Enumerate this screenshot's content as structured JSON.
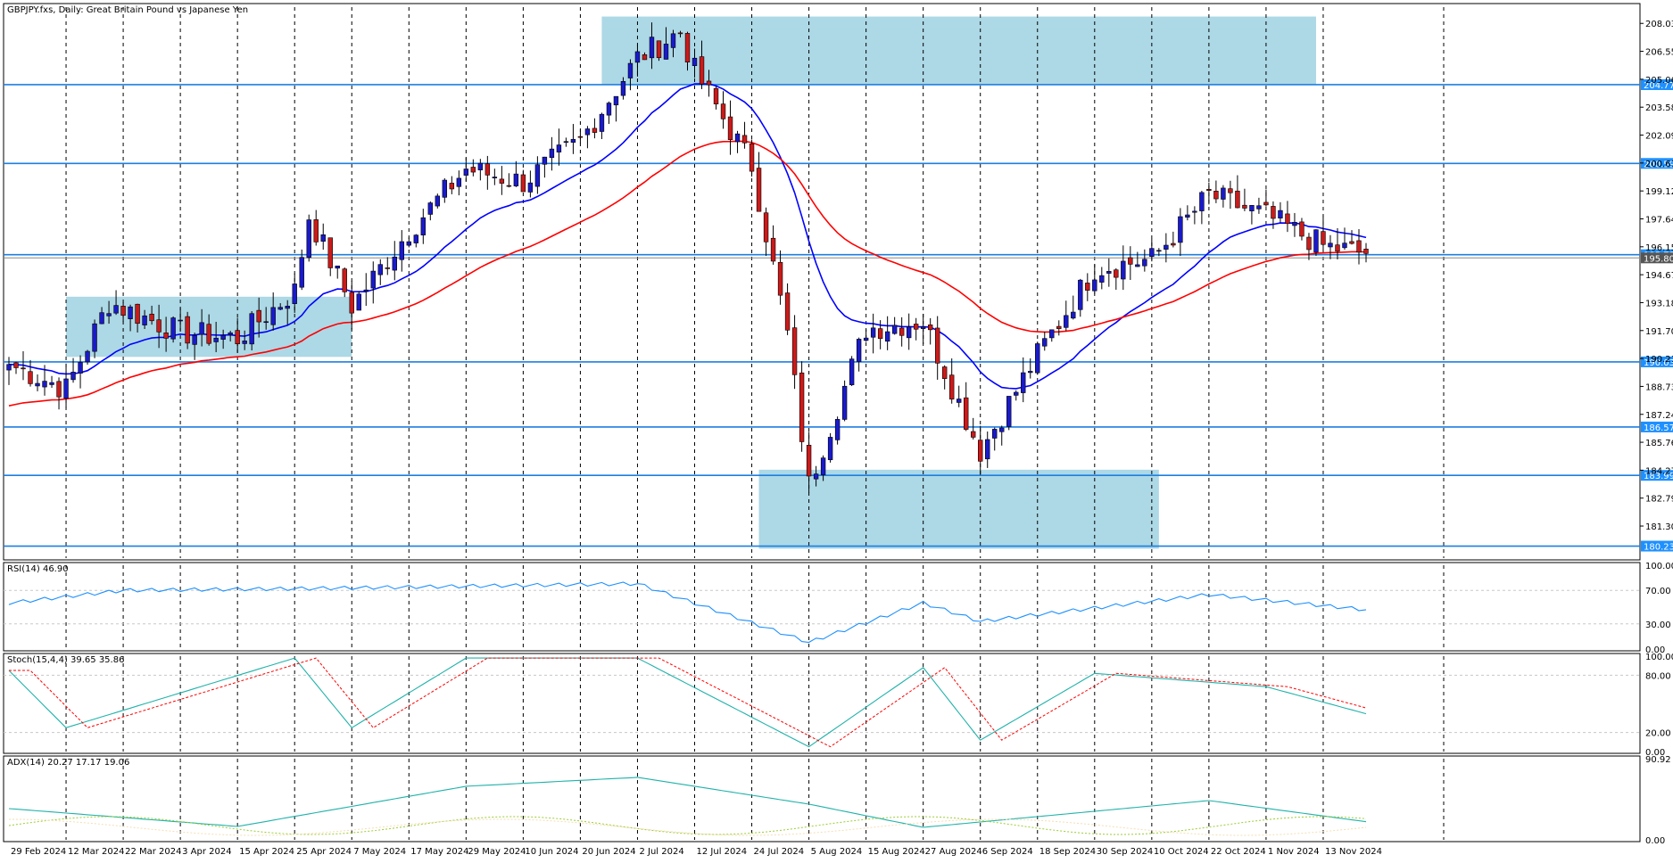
{
  "chart_title": "GBPJPY.fxs, Daily:  Great Britain Pound vs Japanese Yen",
  "colors": {
    "background": "#ffffff",
    "bull_candle": "#1a1acc",
    "bear_candle": "#cc1a1a",
    "ma_fast": "#0000ff",
    "ma_slow": "#ff0000",
    "sr_line": "#1e7fe0",
    "zone": "#add8e6",
    "rsi_line": "#1e90ff",
    "stoch_main": "#20b2aa",
    "stoch_signal": "#ff0000",
    "adx_line": "#20b2aa",
    "plus_di": "#9acd32",
    "minus_di": "#f5deb3"
  },
  "x_labels": [
    "29 Feb 2024",
    "12 Mar 2024",
    "22 Mar 2024",
    "3 Apr 2024",
    "15 Apr 2024",
    "25 Apr 2024",
    "7 May 2024",
    "17 May 2024",
    "29 May 2024",
    "10 Jun 2024",
    "20 Jun 2024",
    "2 Jul 2024",
    "12 Jul 2024",
    "24 Jul 2024",
    "5 Aug 2024",
    "15 Aug 2024",
    "27 Aug 2024",
    "6 Sep 2024",
    "18 Sep 2024",
    "30 Sep 2024",
    "10 Oct 2024",
    "22 Oct 2024",
    "1 Nov 2024",
    "13 Nov 2024"
  ],
  "price_axis_labels": [
    "208.035",
    "206.550",
    "205.065",
    "203.580",
    "202.095",
    "200.610",
    "199.125",
    "197.640",
    "196.155",
    "194.670",
    "193.185",
    "191.700",
    "190.215",
    "188.730",
    "187.245",
    "185.760",
    "184.275",
    "182.790",
    "181.305"
  ],
  "sr_levels": [
    {
      "price": 204.776,
      "label": "204.776"
    },
    {
      "price": 200.59,
      "label": "200.590"
    },
    {
      "price": 195.735,
      "label": "195.735"
    },
    {
      "price": 190.033,
      "label": "190.033"
    },
    {
      "price": 186.574,
      "label": "186.574"
    },
    {
      "price": 183.999,
      "label": "183.999"
    },
    {
      "price": 180.238,
      "label": "180.238"
    }
  ],
  "current_price_label": "195.800",
  "rsi": {
    "label": "RSI(14) 46.90",
    "axis_labels": [
      "100.00",
      "70.00",
      "30.00",
      "0.00"
    ]
  },
  "stoch": {
    "label": "Stoch(15,4,4) 39.65 35.86",
    "axis_labels": [
      "100.00",
      "80.00",
      "20.00",
      "0.00"
    ]
  },
  "adx": {
    "label": "ADX(14) 20.27 17.17 19.06",
    "axis_labels": [
      "90.92",
      "0.00"
    ]
  },
  "chart_data": {
    "type": "candlestick",
    "title": "GBPJPY.fxs, Daily:  Great Britain Pound vs Japanese Yen",
    "x_range": [
      "29 Feb 2024",
      "21 Nov 2024"
    ],
    "price_range": [
      180.0,
      208.4
    ],
    "grid": "vertical dashed",
    "close_keypoints": [
      {
        "date": "29 Feb 2024",
        "close": 189.9
      },
      {
        "date": "12 Mar 2024",
        "close": 188.6
      },
      {
        "date": "20 Mar 2024",
        "close": 193.2
      },
      {
        "date": "3 Apr 2024",
        "close": 191.6
      },
      {
        "date": "15 Apr 2024",
        "close": 191.3
      },
      {
        "date": "25 Apr 2024",
        "close": 193.8
      },
      {
        "date": "29 Apr 2024",
        "close": 197.8
      },
      {
        "date": "7 May 2024",
        "close": 193.0
      },
      {
        "date": "17 May 2024",
        "close": 197.0
      },
      {
        "date": "29 May 2024",
        "close": 200.3
      },
      {
        "date": "10 Jun 2024",
        "close": 199.6
      },
      {
        "date": "20 Jun 2024",
        "close": 201.8
      },
      {
        "date": "2 Jul 2024",
        "close": 206.2
      },
      {
        "date": "10 Jul 2024",
        "close": 207.6
      },
      {
        "date": "12 Jul 2024",
        "close": 205.5
      },
      {
        "date": "24 Jul 2024",
        "close": 200.5
      },
      {
        "date": "31 Jul 2024",
        "close": 191.5
      },
      {
        "date": "5 Aug 2024",
        "close": 183.5
      },
      {
        "date": "15 Aug 2024",
        "close": 191.8
      },
      {
        "date": "27 Aug 2024",
        "close": 192.2
      },
      {
        "date": "6 Sep 2024",
        "close": 185.3
      },
      {
        "date": "18 Sep 2024",
        "close": 190.4
      },
      {
        "date": "30 Sep 2024",
        "close": 195.0
      },
      {
        "date": "10 Oct 2024",
        "close": 195.5
      },
      {
        "date": "22 Oct 2024",
        "close": 198.9
      },
      {
        "date": "1 Nov 2024",
        "close": 197.8
      },
      {
        "date": "13 Nov 2024",
        "close": 196.2
      },
      {
        "date": "21 Nov 2024",
        "close": 195.8
      }
    ],
    "zones": [
      {
        "from": "12 Mar 2024",
        "to": "7 May 2024",
        "price_low": 190.3,
        "price_high": 193.5
      },
      {
        "from": "25 Jun 2024",
        "to": "12 Nov 2024",
        "price_low": 204.776,
        "price_high": 208.4
      },
      {
        "from": "25 Jul 2024",
        "to": "11 Oct 2024",
        "price_low": 180.1,
        "price_high": 184.3
      }
    ],
    "rsi_keypoints": [
      {
        "date": "29 Feb 2024",
        "value": 55
      },
      {
        "date": "22 Mar 2024",
        "value": 70
      },
      {
        "date": "25 Apr 2024",
        "value": 72
      },
      {
        "date": "2 Jul 2024",
        "value": 78
      },
      {
        "date": "5 Aug 2024",
        "value": 8
      },
      {
        "date": "27 Aug 2024",
        "value": 55
      },
      {
        "date": "6 Sep 2024",
        "value": 33
      },
      {
        "date": "22 Oct 2024",
        "value": 65
      },
      {
        "date": "21 Nov 2024",
        "value": 46.9
      }
    ],
    "stoch_keypoints": [
      {
        "date": "29 Feb 2024",
        "value": 85
      },
      {
        "date": "12 Mar 2024",
        "value": 25
      },
      {
        "date": "25 Apr 2024",
        "value": 98
      },
      {
        "date": "7 May 2024",
        "value": 25
      },
      {
        "date": "29 May 2024",
        "value": 98
      },
      {
        "date": "2 Jul 2024",
        "value": 98
      },
      {
        "date": "5 Aug 2024",
        "value": 5
      },
      {
        "date": "27 Aug 2024",
        "value": 88
      },
      {
        "date": "6 Sep 2024",
        "value": 12
      },
      {
        "date": "30 Sep 2024",
        "value": 82
      },
      {
        "date": "1 Nov 2024",
        "value": 68
      },
      {
        "date": "21 Nov 2024",
        "value": 39.65
      }
    ],
    "adx_keypoints": [
      {
        "date": "29 Feb 2024",
        "value": 35
      },
      {
        "date": "15 Apr 2024",
        "value": 15
      },
      {
        "date": "29 May 2024",
        "value": 60
      },
      {
        "date": "2 Jul 2024",
        "value": 70
      },
      {
        "date": "5 Aug 2024",
        "value": 40
      },
      {
        "date": "27 Aug 2024",
        "value": 14
      },
      {
        "date": "22 Oct 2024",
        "value": 44
      },
      {
        "date": "21 Nov 2024",
        "value": 20.27
      }
    ]
  }
}
